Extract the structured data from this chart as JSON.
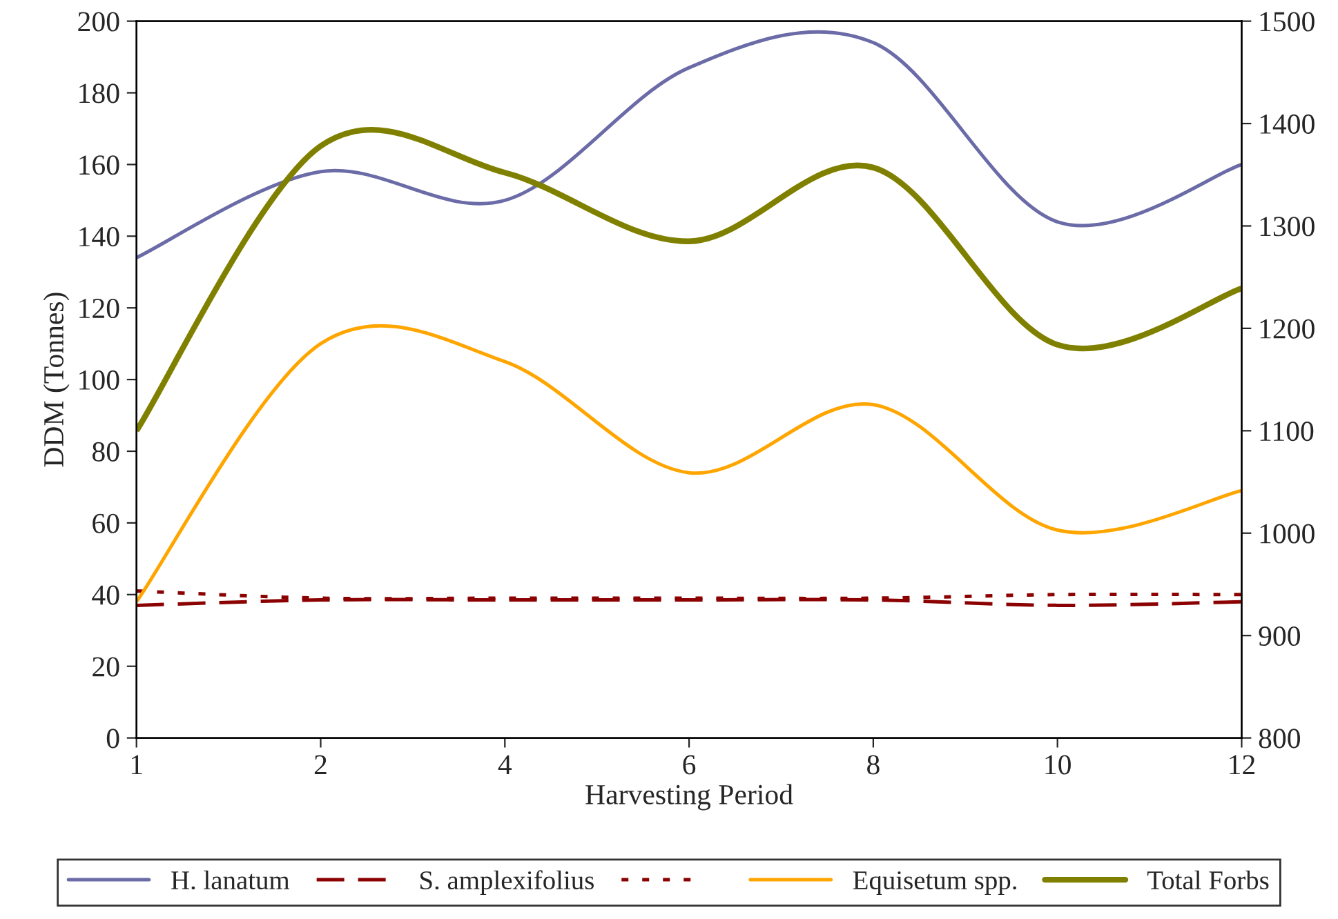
{
  "chart_data": {
    "type": "line",
    "xlabel": "Harvesting Period",
    "ylabel": "DDM (Tonnes)",
    "categories": [
      "1",
      "2",
      "4",
      "6",
      "8",
      "10",
      "12"
    ],
    "series": [
      {
        "name": "H. lanatum",
        "color": "#6b6ba8",
        "line_style": "solid",
        "values": [
          134,
          158,
          150,
          187,
          194,
          144,
          160
        ]
      },
      {
        "name": "S. amplexifolius",
        "color": "#8b0000",
        "line_style": "dashed",
        "values": [
          37,
          38.5,
          38.5,
          38.5,
          38.5,
          37,
          38
        ]
      },
      {
        "color": "#8b0000",
        "line_style": "dotted",
        "values": [
          41,
          39,
          39,
          39,
          39,
          40,
          40
        ]
      },
      {
        "name": "Equisetum spp.",
        "color": "#ffa500",
        "line_style": "solid",
        "values": [
          38,
          110,
          105,
          74,
          93,
          58,
          69
        ]
      },
      {
        "name": "Total Forbs",
        "color": "#808000",
        "line_style": "solid",
        "axis": "y2",
        "values": [
          1100,
          1378,
          1352,
          1285,
          1357,
          1184,
          1239
        ]
      }
    ],
    "ylim": [
      0,
      200
    ],
    "yticks": [
      0,
      20,
      40,
      60,
      80,
      100,
      120,
      140,
      160,
      180,
      200
    ],
    "y2lim": [
      800,
      1500
    ],
    "y2ticks": [
      800,
      900,
      1000,
      1100,
      1200,
      1300,
      1400,
      1500
    ],
    "legend": "bottom",
    "grid": false,
    "marker": "none"
  }
}
